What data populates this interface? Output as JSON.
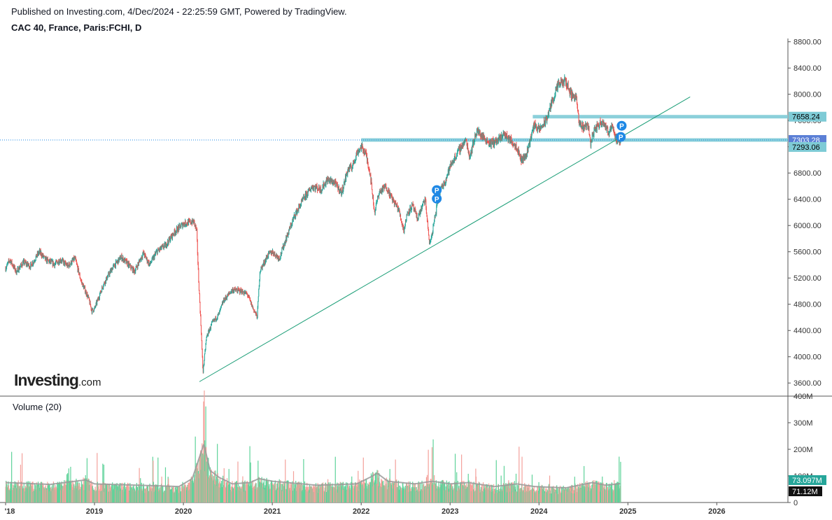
{
  "header": {
    "published": "Published on Investing.com, 4/Dec/2024 - 22:25:59 GMT, Powered by TradingView.",
    "symbol": "CAC 40, France, Paris:FCHI, D"
  },
  "logo": {
    "main": "Investing",
    "suffix": ".com"
  },
  "colors": {
    "up": "#26a69a",
    "down": "#ef5350",
    "vol_up": "#5fd39a",
    "vol_down": "#f4a19b",
    "level": "#7ecbd6",
    "trend": "#1b9e77",
    "marker": "#1e88e5",
    "last_price_bg": "#5b7fd6",
    "axis": "#555555"
  },
  "chart_data": {
    "type": "candlestick",
    "title": "CAC 40, France, Paris:FCHI, D",
    "x_axis": {
      "tick_labels": [
        "'18",
        "2019",
        "2020",
        "2021",
        "2022",
        "2023",
        "2024",
        "2025",
        "2026"
      ],
      "tick_years": [
        2018.0,
        2019.0,
        2020.0,
        2021.0,
        2022.0,
        2023.0,
        2024.0,
        2025.0,
        2026.0
      ],
      "range": [
        2018.0,
        2026.8
      ]
    },
    "price_axis": {
      "ticks": [
        3600,
        4000,
        4400,
        4800,
        5200,
        5600,
        6000,
        6400,
        6800,
        7200,
        7600,
        8000,
        8400,
        8800
      ],
      "tick_labels": [
        "3600.00",
        "4000.00",
        "4400.00",
        "4800.00",
        "5200.00",
        "5600.00",
        "6000.00",
        "6400.00",
        "6800.00",
        "7200.00",
        "7600.00",
        "8000.00",
        "8400.00",
        "8800.00"
      ],
      "range": [
        3400,
        8850
      ]
    },
    "price_path": [
      [
        2018.0,
        5350
      ],
      [
        2018.05,
        5480
      ],
      [
        2018.12,
        5290
      ],
      [
        2018.2,
        5440
      ],
      [
        2018.28,
        5380
      ],
      [
        2018.38,
        5600
      ],
      [
        2018.45,
        5480
      ],
      [
        2018.55,
        5410
      ],
      [
        2018.62,
        5480
      ],
      [
        2018.7,
        5380
      ],
      [
        2018.78,
        5500
      ],
      [
        2018.85,
        5150
      ],
      [
        2018.93,
        4900
      ],
      [
        2018.97,
        4700
      ],
      [
        2019.0,
        4730
      ],
      [
        2019.1,
        5100
      ],
      [
        2019.2,
        5350
      ],
      [
        2019.3,
        5520
      ],
      [
        2019.37,
        5420
      ],
      [
        2019.45,
        5300
      ],
      [
        2019.55,
        5580
      ],
      [
        2019.62,
        5400
      ],
      [
        2019.7,
        5600
      ],
      [
        2019.8,
        5700
      ],
      [
        2019.9,
        5900
      ],
      [
        2020.0,
        6030
      ],
      [
        2020.12,
        6060
      ],
      [
        2020.15,
        5900
      ],
      [
        2020.17,
        5200
      ],
      [
        2020.2,
        4400
      ],
      [
        2020.22,
        3760
      ],
      [
        2020.26,
        4300
      ],
      [
        2020.32,
        4500
      ],
      [
        2020.4,
        4650
      ],
      [
        2020.45,
        4850
      ],
      [
        2020.55,
        5020
      ],
      [
        2020.65,
        5000
      ],
      [
        2020.72,
        4950
      ],
      [
        2020.78,
        4750
      ],
      [
        2020.83,
        4600
      ],
      [
        2020.86,
        5300
      ],
      [
        2020.95,
        5550
      ],
      [
        2021.0,
        5600
      ],
      [
        2021.08,
        5500
      ],
      [
        2021.15,
        5780
      ],
      [
        2021.25,
        6150
      ],
      [
        2021.35,
        6400
      ],
      [
        2021.45,
        6600
      ],
      [
        2021.55,
        6550
      ],
      [
        2021.62,
        6700
      ],
      [
        2021.7,
        6650
      ],
      [
        2021.78,
        6500
      ],
      [
        2021.85,
        6850
      ],
      [
        2021.9,
        6900
      ],
      [
        2021.95,
        7100
      ],
      [
        2022.0,
        7200
      ],
      [
        2022.05,
        7100
      ],
      [
        2022.1,
        6800
      ],
      [
        2022.15,
        6200
      ],
      [
        2022.2,
        6500
      ],
      [
        2022.28,
        6600
      ],
      [
        2022.35,
        6400
      ],
      [
        2022.42,
        6250
      ],
      [
        2022.48,
        5920
      ],
      [
        2022.52,
        6200
      ],
      [
        2022.58,
        6300
      ],
      [
        2022.63,
        6100
      ],
      [
        2022.72,
        6400
      ],
      [
        2022.77,
        5700
      ],
      [
        2022.8,
        5900
      ],
      [
        2022.88,
        6500
      ],
      [
        2022.95,
        6700
      ],
      [
        2023.0,
        6900
      ],
      [
        2023.1,
        7150
      ],
      [
        2023.18,
        7300
      ],
      [
        2023.22,
        7050
      ],
      [
        2023.3,
        7450
      ],
      [
        2023.37,
        7350
      ],
      [
        2023.45,
        7250
      ],
      [
        2023.55,
        7300
      ],
      [
        2023.6,
        7400
      ],
      [
        2023.68,
        7300
      ],
      [
        2023.75,
        7200
      ],
      [
        2023.8,
        7000
      ],
      [
        2023.85,
        7050
      ],
      [
        2023.9,
        7300
      ],
      [
        2023.95,
        7550
      ],
      [
        2024.0,
        7450
      ],
      [
        2024.08,
        7600
      ],
      [
        2024.15,
        7900
      ],
      [
        2024.22,
        8150
      ],
      [
        2024.3,
        8200
      ],
      [
        2024.36,
        8000
      ],
      [
        2024.42,
        7950
      ],
      [
        2024.45,
        7550
      ],
      [
        2024.5,
        7500
      ],
      [
        2024.55,
        7550
      ],
      [
        2024.58,
        7250
      ],
      [
        2024.62,
        7450
      ],
      [
        2024.68,
        7550
      ],
      [
        2024.72,
        7600
      ],
      [
        2024.78,
        7400
      ],
      [
        2024.82,
        7550
      ],
      [
        2024.86,
        7350
      ],
      [
        2024.89,
        7250
      ],
      [
        2024.92,
        7300
      ]
    ],
    "horizontal_levels": [
      {
        "value": 7658.24,
        "from": 2023.93,
        "label": "7658.24"
      },
      {
        "value": 7303.28,
        "from": 2022.0,
        "label": "7303.28"
      }
    ],
    "trendline": {
      "from": [
        2020.18,
        3620
      ],
      "to": [
        2025.7,
        7960
      ]
    },
    "last_price": {
      "value": 7303.28,
      "label": "7303.28"
    },
    "price_tag": {
      "value": 7293.06,
      "label": "7293.06"
    },
    "markers": [
      {
        "x": 2022.85,
        "price": 6540,
        "label": "P"
      },
      {
        "x": 2022.85,
        "price": 6410,
        "label": "P"
      },
      {
        "x": 2024.93,
        "price": 7520,
        "label": "P"
      },
      {
        "x": 2024.92,
        "price": 7350,
        "label": "P"
      }
    ],
    "volume": {
      "label": "Volume (20)",
      "ticks": [
        0,
        100,
        200,
        300,
        400
      ],
      "tick_labels": [
        "0",
        "100M",
        "200M",
        "300M",
        "400M"
      ],
      "range": [
        0,
        400
      ],
      "unit": "M",
      "path": [
        [
          2018.0,
          75
        ],
        [
          2018.5,
          68
        ],
        [
          2018.9,
          85
        ],
        [
          2019.0,
          70
        ],
        [
          2019.5,
          65
        ],
        [
          2019.95,
          60
        ],
        [
          2020.1,
          90
        ],
        [
          2020.18,
          170
        ],
        [
          2020.23,
          220
        ],
        [
          2020.3,
          120
        ],
        [
          2020.4,
          95
        ],
        [
          2020.55,
          70
        ],
        [
          2020.75,
          75
        ],
        [
          2020.85,
          90
        ],
        [
          2021.0,
          80
        ],
        [
          2021.5,
          65
        ],
        [
          2021.95,
          70
        ],
        [
          2022.1,
          95
        ],
        [
          2022.18,
          110
        ],
        [
          2022.3,
          80
        ],
        [
          2022.6,
          70
        ],
        [
          2022.8,
          80
        ],
        [
          2023.0,
          70
        ],
        [
          2023.2,
          75
        ],
        [
          2023.5,
          60
        ],
        [
          2023.75,
          70
        ],
        [
          2023.95,
          60
        ],
        [
          2024.3,
          55
        ],
        [
          2024.45,
          65
        ],
        [
          2024.6,
          75
        ],
        [
          2024.75,
          65
        ],
        [
          2024.92,
          71
        ]
      ],
      "last_labels": [
        {
          "value": 73.097,
          "label": "73.097M"
        },
        {
          "value": 71.12,
          "label": "71.12M"
        }
      ]
    }
  }
}
